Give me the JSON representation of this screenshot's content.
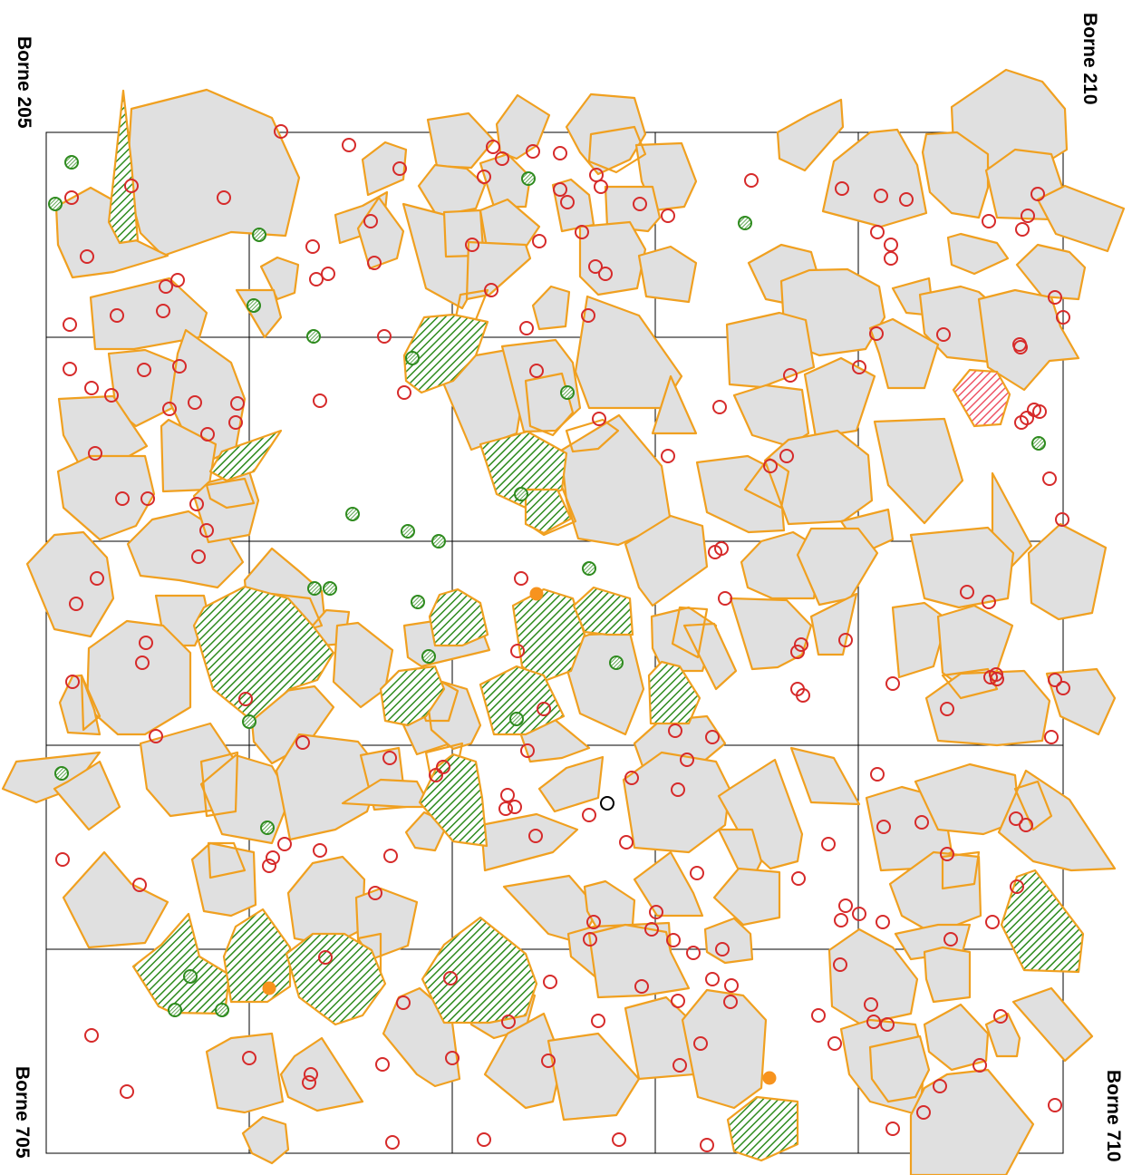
{
  "corner_labels": {
    "top_left": "Borne 205",
    "top_right": "Borne 210",
    "bottom_left": "Borne 705",
    "bottom_right": "Borne 710"
  },
  "grid": {
    "columns": 5,
    "rows": 5
  },
  "colors": {
    "grid_line": "#000000",
    "polygon_fill": "#e0e0e0",
    "polygon_stroke": "#f0a020",
    "hatch_green": "#2e8b1e",
    "hatch_red": "#ee5566",
    "circle_red": "#d62a2a",
    "circle_green": "#2e8b1e",
    "circle_orange": "#f7931e",
    "circle_black": "#000000"
  },
  "features": {
    "grey_polygons": "many",
    "green_hatched_polygons": "many",
    "red_hatched_polygons": 1,
    "red_circles": "many",
    "green_hatched_circles": "many",
    "orange_filled_circles": 3,
    "black_open_circles": 1
  }
}
